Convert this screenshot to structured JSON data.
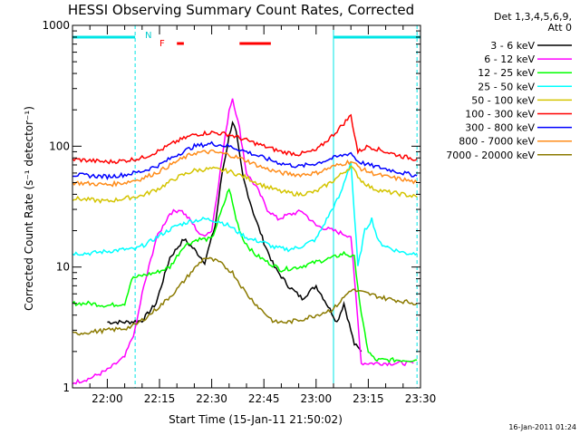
{
  "chart_data": {
    "type": "line",
    "title": "HESSI Observing Summary Count Rates, Corrected",
    "xlabel": "Start Time (15-Jan-11 21:50:02)",
    "ylabel": "Corrected Count Rate (s⁻¹ detector⁻¹)",
    "yscale": "log",
    "ylim": [
      1,
      1000
    ],
    "yticks": [
      {
        "value": 1,
        "label": "1"
      },
      {
        "value": 10,
        "label": "10"
      },
      {
        "value": 100,
        "label": "100"
      },
      {
        "value": 1000,
        "label": "1000"
      }
    ],
    "xlim": [
      "21:50",
      "23:30"
    ],
    "xticks": [
      "22:00",
      "22:15",
      "22:30",
      "22:45",
      "23:00",
      "23:15",
      "23:30"
    ],
    "legend_header": [
      "Det 1,3,4,5,6,9,",
      "Att 0"
    ],
    "legend_placement": "right",
    "footer_date": "16-Jan-2011 01:24",
    "markers": {
      "night_label": "N",
      "flare_label": "F",
      "night_intervals": [
        [
          "21:50",
          "22:08"
        ],
        [
          "23:05",
          "23:30"
        ]
      ],
      "flare_intervals": [
        [
          "22:20",
          "22:22"
        ],
        [
          "22:38",
          "22:47"
        ]
      ],
      "vertical_lines": [
        "22:08",
        "23:05",
        "23:29"
      ]
    },
    "series": [
      {
        "name": "3 - 6 keV",
        "color": "#000000",
        "x": [
          "22:00",
          "22:06",
          "22:10",
          "22:14",
          "22:18",
          "22:22",
          "22:25",
          "22:28",
          "22:31",
          "22:33",
          "22:35",
          "22:36",
          "22:37",
          "22:39",
          "22:42",
          "22:45",
          "22:48",
          "22:52",
          "22:56",
          "23:00",
          "23:03",
          "23:06",
          "23:08",
          "23:11",
          "23:13"
        ],
        "y": [
          3.5,
          3.5,
          3.6,
          5,
          12,
          17,
          14,
          11,
          22,
          60,
          120,
          160,
          130,
          55,
          28,
          16,
          10,
          7,
          5.5,
          7,
          5,
          3.5,
          5,
          2.3,
          2
        ]
      },
      {
        "name": "6 - 12 keV",
        "color": "#ff00ff",
        "x": [
          "21:50",
          "21:55",
          "22:00",
          "22:05",
          "22:08",
          "22:10",
          "22:14",
          "22:18",
          "22:21",
          "22:24",
          "22:27",
          "22:30",
          "22:33",
          "22:35",
          "22:36",
          "22:38",
          "22:40",
          "22:43",
          "22:46",
          "22:49",
          "22:52",
          "22:56",
          "23:00",
          "23:05",
          "23:10",
          "23:13",
          "23:15",
          "23:18",
          "23:22",
          "23:28"
        ],
        "y": [
          1.1,
          1.2,
          1.4,
          1.8,
          3,
          6,
          17,
          28,
          30,
          24,
          18,
          20,
          80,
          200,
          250,
          140,
          60,
          45,
          30,
          25,
          27,
          29,
          22,
          20,
          18,
          1.6,
          1.6,
          1.6,
          1.6,
          1.6
        ]
      },
      {
        "name": "12 - 25 keV",
        "color": "#00ff00",
        "x": [
          "21:50",
          "21:55",
          "22:00",
          "22:05",
          "22:07",
          "22:10",
          "22:14",
          "22:18",
          "22:22",
          "22:26",
          "22:30",
          "22:33",
          "22:35",
          "22:37",
          "22:39",
          "22:42",
          "22:46",
          "22:50",
          "22:55",
          "23:00",
          "23:05",
          "23:08",
          "23:11",
          "23:13",
          "23:15",
          "23:17",
          "23:20",
          "23:25",
          "23:29"
        ],
        "y": [
          5,
          5,
          4.8,
          5,
          8,
          8.5,
          9,
          10,
          15,
          17,
          17,
          30,
          45,
          25,
          17,
          13,
          11,
          9.5,
          10,
          11,
          12,
          13,
          12,
          4,
          2,
          1.7,
          1.7,
          1.7,
          1.7
        ]
      },
      {
        "name": "25 - 50 keV",
        "color": "#00ffff",
        "x": [
          "21:50",
          "21:55",
          "22:00",
          "22:05",
          "22:08",
          "22:12",
          "22:16",
          "22:20",
          "22:24",
          "22:28",
          "22:32",
          "22:35",
          "22:38",
          "22:41",
          "22:45",
          "22:48",
          "22:52",
          "22:55",
          "23:00",
          "23:04",
          "23:07",
          "23:10",
          "23:12",
          "23:14",
          "23:16",
          "23:18",
          "23:22",
          "23:26",
          "23:29"
        ],
        "y": [
          13,
          13,
          13.5,
          14,
          14,
          16,
          19,
          22,
          24,
          25,
          24,
          22,
          19,
          17,
          16,
          14.5,
          14,
          14.5,
          17,
          28,
          40,
          75,
          10,
          20,
          25,
          16,
          14,
          13,
          13
        ]
      },
      {
        "name": "50 - 100 keV",
        "color": "#d4c400",
        "x": [
          "21:50",
          "21:55",
          "22:00",
          "22:05",
          "22:10",
          "22:15",
          "22:20",
          "22:25",
          "22:30",
          "22:35",
          "22:40",
          "22:45",
          "22:50",
          "22:55",
          "23:00",
          "23:05",
          "23:10",
          "23:13",
          "23:16",
          "23:20",
          "23:25",
          "23:29"
        ],
        "y": [
          37,
          36,
          35,
          37,
          39,
          45,
          55,
          63,
          65,
          62,
          55,
          47,
          42,
          40,
          42,
          52,
          68,
          52,
          45,
          42,
          40,
          38
        ]
      },
      {
        "name": "100 - 300 keV",
        "color": "#ff0000",
        "x": [
          "21:50",
          "21:55",
          "22:00",
          "22:05",
          "22:10",
          "22:15",
          "22:20",
          "22:25",
          "22:30",
          "22:35",
          "22:40",
          "22:45",
          "22:50",
          "22:55",
          "23:00",
          "23:05",
          "23:08",
          "23:10",
          "23:12",
          "23:15",
          "23:20",
          "23:25",
          "23:29"
        ],
        "y": [
          78,
          76,
          74,
          76,
          80,
          92,
          110,
          125,
          130,
          125,
          112,
          100,
          90,
          86,
          92,
          125,
          155,
          180,
          90,
          100,
          90,
          82,
          78
        ]
      },
      {
        "name": "300 - 800 keV",
        "color": "#0000ff",
        "x": [
          "21:50",
          "21:55",
          "22:00",
          "22:05",
          "22:10",
          "22:15",
          "22:20",
          "22:25",
          "22:30",
          "22:35",
          "22:40",
          "22:45",
          "22:50",
          "22:55",
          "23:00",
          "23:05",
          "23:10",
          "23:12",
          "23:15",
          "23:20",
          "23:25",
          "23:29"
        ],
        "y": [
          58,
          57,
          56,
          58,
          62,
          70,
          85,
          100,
          105,
          100,
          90,
          80,
          72,
          68,
          72,
          80,
          88,
          75,
          70,
          65,
          60,
          57
        ]
      },
      {
        "name": "800 - 7000 keV",
        "color": "#ff8c1a",
        "x": [
          "21:50",
          "21:55",
          "22:00",
          "22:05",
          "22:10",
          "22:15",
          "22:20",
          "22:25",
          "22:30",
          "22:35",
          "22:40",
          "22:45",
          "22:50",
          "22:55",
          "23:00",
          "23:05",
          "23:10",
          "23:13",
          "23:16",
          "23:20",
          "23:25",
          "23:29"
        ],
        "y": [
          50,
          49,
          48,
          50,
          54,
          62,
          75,
          88,
          90,
          85,
          76,
          66,
          60,
          58,
          60,
          68,
          75,
          65,
          60,
          56,
          53,
          50
        ]
      },
      {
        "name": "7000 - 20000 keV",
        "color": "#8b7a00",
        "x": [
          "21:50",
          "21:55",
          "22:00",
          "22:05",
          "22:08",
          "22:12",
          "22:16",
          "22:20",
          "22:24",
          "22:28",
          "22:32",
          "22:36",
          "22:40",
          "22:44",
          "22:48",
          "22:52",
          "22:56",
          "23:00",
          "23:05",
          "23:10",
          "23:15",
          "23:20",
          "23:25",
          "23:29"
        ],
        "y": [
          2.8,
          2.9,
          3,
          3.1,
          3.3,
          4,
          5,
          6.5,
          9,
          12,
          11,
          9,
          6,
          4.5,
          3.5,
          3.5,
          3.7,
          4,
          4.5,
          6.5,
          6,
          5.5,
          5.2,
          5
        ]
      }
    ]
  }
}
